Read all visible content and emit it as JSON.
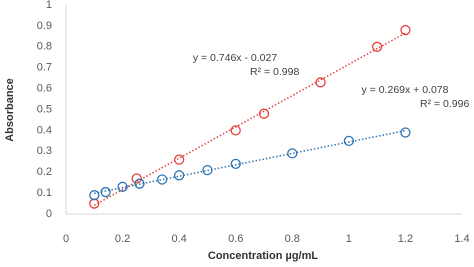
{
  "chart_data": {
    "type": "scatter",
    "x_label": "Concentration µg/mL",
    "y_label": "Absorbance",
    "xlim": [
      0,
      1.4
    ],
    "xticks": [
      0,
      0.2,
      0.4,
      0.6,
      0.8,
      1,
      1.2,
      1.4
    ],
    "ylim": [
      0,
      1
    ],
    "yticks": [
      0,
      0.1,
      0.2,
      0.3,
      0.4,
      0.5,
      0.6,
      0.7,
      0.8,
      0.9,
      1
    ],
    "grid": false,
    "series": [
      {
        "color": "#e8403c",
        "x": [
          0.1,
          0.25,
          0.4,
          0.6,
          0.7,
          0.9,
          1.1,
          1.2
        ],
        "values": [
          0.05,
          0.17,
          0.26,
          0.4,
          0.48,
          0.63,
          0.8,
          0.88
        ],
        "annotation": [
          "y = 0.746x - 0.027",
          "R² = 0.998"
        ]
      },
      {
        "color": "#2e75b6",
        "x": [
          0.1,
          0.14,
          0.2,
          0.26,
          0.34,
          0.4,
          0.5,
          0.6,
          0.8,
          1.0,
          1.2
        ],
        "values": [
          0.09,
          0.105,
          0.13,
          0.145,
          0.165,
          0.185,
          0.21,
          0.24,
          0.29,
          0.35,
          0.39
        ],
        "annotation": [
          "y = 0.269x + 0.078",
          "R² = 0.996"
        ]
      }
    ]
  }
}
